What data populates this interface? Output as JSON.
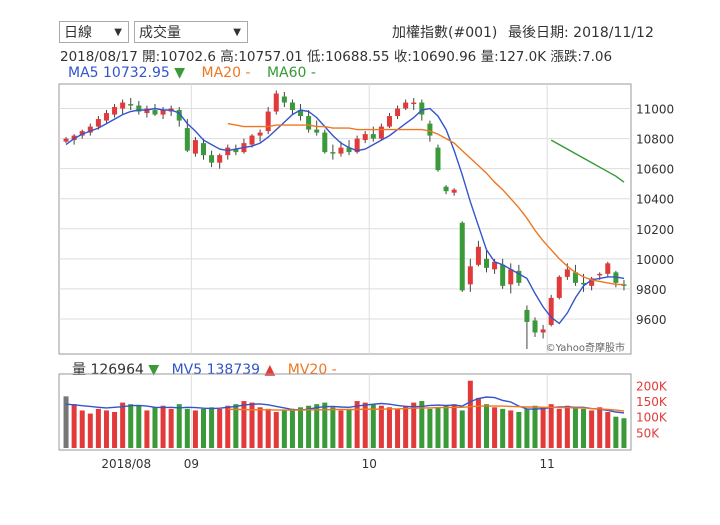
{
  "controls": {
    "period": "日線",
    "indicator": "成交量"
  },
  "header": {
    "title": "加權指數(#001)",
    "last_date": "最後日期: 2018/11/12"
  },
  "quote": {
    "date": "2018/08/17",
    "open": "開:10702.6",
    "high": "高:10757.01",
    "low": "低:10688.55",
    "close": "收:10690.96",
    "volume": "量:127.0K",
    "change": "漲跌:7.06"
  },
  "ma_legend": {
    "ma5": "MA5 10732.95",
    "ma5_arrow": "▼",
    "ma20": "MA20 -",
    "ma60": "MA60 -"
  },
  "vol_legend": {
    "vol": "量 126964",
    "vol_arrow": "▼",
    "mv5": "MV5 138739",
    "mv5_arrow": "▲",
    "mv20": "MV20 -"
  },
  "watermark": "©Yahoo奇摩股市",
  "colors": {
    "up": "#e23a3a",
    "down": "#3a9a3a",
    "ma5": "#3355cc",
    "ma20": "#ee7722",
    "ma60": "#339933",
    "axis_vol": "#e23a3a"
  },
  "chart_data": [
    {
      "type": "candlestick",
      "title": "加權指數(#001)",
      "x_labels": [
        "2018/08",
        "09",
        "10",
        "11"
      ],
      "y_ticks": [
        9600,
        9800,
        10000,
        10200,
        10400,
        10600,
        10800,
        11000
      ],
      "ylim": [
        9380,
        11150
      ],
      "ohlc": [
        [
          10780,
          10810,
          10770,
          10800
        ],
        [
          10790,
          10830,
          10760,
          10820
        ],
        [
          10820,
          10860,
          10800,
          10850
        ],
        [
          10840,
          10900,
          10820,
          10880
        ],
        [
          10880,
          10950,
          10860,
          10930
        ],
        [
          10920,
          10990,
          10900,
          10970
        ],
        [
          10960,
          11030,
          10940,
          11010
        ],
        [
          11000,
          11060,
          10960,
          11040
        ],
        [
          11030,
          11070,
          10990,
          11020
        ],
        [
          11020,
          11050,
          10960,
          10980
        ],
        [
          10970,
          11020,
          10940,
          11000
        ],
        [
          10990,
          11030,
          10950,
          10960
        ],
        [
          10960,
          11010,
          10930,
          10990
        ],
        [
          10980,
          11020,
          10950,
          11000
        ],
        [
          10990,
          11010,
          10880,
          10920
        ],
        [
          10870,
          10930,
          10710,
          10720
        ],
        [
          10700,
          10810,
          10680,
          10790
        ],
        [
          10770,
          10800,
          10660,
          10690
        ],
        [
          10690,
          10720,
          10610,
          10640
        ],
        [
          10640,
          10700,
          10600,
          10690
        ],
        [
          10690,
          10760,
          10660,
          10740
        ],
        [
          10730,
          10760,
          10690,
          10710
        ],
        [
          10710,
          10800,
          10700,
          10770
        ],
        [
          10760,
          10830,
          10740,
          10820
        ],
        [
          10820,
          10860,
          10780,
          10840
        ],
        [
          10850,
          11010,
          10830,
          10980
        ],
        [
          10980,
          11120,
          10960,
          11100
        ],
        [
          11080,
          11110,
          11010,
          11040
        ],
        [
          11040,
          11060,
          10960,
          10990
        ],
        [
          10990,
          11030,
          10920,
          10950
        ],
        [
          10950,
          10990,
          10840,
          10860
        ],
        [
          10860,
          10920,
          10820,
          10840
        ],
        [
          10840,
          10860,
          10700,
          10710
        ],
        [
          10710,
          10760,
          10660,
          10700
        ],
        [
          10700,
          10780,
          10680,
          10740
        ],
        [
          10740,
          10790,
          10690,
          10710
        ],
        [
          10710,
          10820,
          10700,
          10800
        ],
        [
          10790,
          10850,
          10770,
          10830
        ],
        [
          10830,
          10880,
          10780,
          10800
        ],
        [
          10800,
          10900,
          10790,
          10880
        ],
        [
          10880,
          10970,
          10870,
          10950
        ],
        [
          10950,
          11020,
          10930,
          11000
        ],
        [
          11000,
          11060,
          10990,
          11040
        ],
        [
          11030,
          11070,
          10990,
          11040
        ],
        [
          11040,
          11060,
          10920,
          10960
        ],
        [
          10900,
          10920,
          10780,
          10820
        ],
        [
          10740,
          10760,
          10580,
          10590
        ],
        [
          10480,
          10490,
          10430,
          10450
        ],
        [
          10440,
          10470,
          10420,
          10460
        ],
        [
          10240,
          10250,
          9780,
          9790
        ],
        [
          9830,
          10000,
          9780,
          9950
        ],
        [
          9960,
          10120,
          9950,
          10080
        ],
        [
          10000,
          10060,
          9910,
          9940
        ],
        [
          9930,
          10000,
          9900,
          9980
        ],
        [
          9960,
          10000,
          9800,
          9820
        ],
        [
          9830,
          9970,
          9770,
          9930
        ],
        [
          9920,
          9960,
          9820,
          9840
        ],
        [
          9660,
          9690,
          9400,
          9580
        ],
        [
          9590,
          9610,
          9480,
          9510
        ],
        [
          9510,
          9560,
          9470,
          9530
        ],
        [
          9560,
          9760,
          9550,
          9740
        ],
        [
          9740,
          9890,
          9730,
          9880
        ],
        [
          9880,
          9970,
          9860,
          9930
        ],
        [
          9910,
          9960,
          9820,
          9840
        ],
        [
          9840,
          9900,
          9780,
          9830
        ],
        [
          9820,
          9880,
          9790,
          9870
        ],
        [
          9890,
          9910,
          9860,
          9900
        ],
        [
          9900,
          9980,
          9880,
          9970
        ],
        [
          9910,
          9920,
          9810,
          9840
        ],
        [
          9830,
          9860,
          9790,
          9820
        ]
      ],
      "ma5": [
        10760,
        10800,
        10830,
        10850,
        10870,
        10900,
        10930,
        10960,
        10980,
        10990,
        10990,
        11000,
        10990,
        10990,
        10970,
        10900,
        10850,
        10790,
        10760,
        10730,
        10720,
        10730,
        10740,
        10750,
        10770,
        10810,
        10860,
        10910,
        10960,
        10990,
        10980,
        10940,
        10880,
        10820,
        10770,
        10740,
        10720,
        10730,
        10760,
        10790,
        10820,
        10860,
        10900,
        10940,
        10990,
        11000,
        10950,
        10860,
        10720,
        10560,
        10380,
        10220,
        10060,
        9980,
        9960,
        9930,
        9900,
        9870,
        9770,
        9680,
        9610,
        9570,
        9640,
        9740,
        9820,
        9860,
        9870,
        9880,
        9880,
        9870
      ],
      "ma20": [
        null,
        null,
        null,
        null,
        null,
        null,
        null,
        null,
        null,
        null,
        null,
        null,
        null,
        null,
        null,
        null,
        null,
        null,
        null,
        null,
        10900,
        10890,
        10880,
        10880,
        10880,
        10880,
        10890,
        10890,
        10890,
        10890,
        10890,
        10880,
        10880,
        10870,
        10870,
        10870,
        10860,
        10860,
        10860,
        10860,
        10860,
        10860,
        10860,
        10860,
        10860,
        10850,
        10830,
        10800,
        10770,
        10720,
        10670,
        10620,
        10570,
        10510,
        10460,
        10400,
        10340,
        10270,
        10190,
        10120,
        10060,
        10000,
        9950,
        9910,
        9880,
        9860,
        9850,
        9840,
        9830,
        9830
      ],
      "ma60": [
        null,
        null,
        null,
        null,
        null,
        null,
        null,
        null,
        null,
        null,
        null,
        null,
        null,
        null,
        null,
        null,
        null,
        null,
        null,
        null,
        null,
        null,
        null,
        null,
        null,
        null,
        null,
        null,
        null,
        null,
        null,
        null,
        null,
        null,
        null,
        null,
        null,
        null,
        null,
        null,
        null,
        null,
        null,
        null,
        null,
        null,
        null,
        null,
        null,
        null,
        null,
        null,
        null,
        null,
        null,
        null,
        null,
        null,
        null,
        null,
        10790,
        10760,
        10730,
        10700,
        10670,
        10640,
        10610,
        10580,
        10550,
        10510
      ]
    },
    {
      "type": "bar",
      "title": "成交量",
      "y_ticks": [
        "200K",
        "150K",
        "100K",
        "50K"
      ],
      "ylim": [
        0,
        230
      ],
      "volume": [
        165,
        140,
        120,
        110,
        125,
        120,
        115,
        145,
        140,
        135,
        120,
        130,
        135,
        125,
        140,
        125,
        120,
        125,
        130,
        125,
        135,
        140,
        150,
        145,
        130,
        125,
        115,
        120,
        125,
        130,
        135,
        140,
        145,
        130,
        120,
        125,
        150,
        145,
        140,
        135,
        130,
        125,
        135,
        145,
        150,
        125,
        130,
        135,
        140,
        120,
        215,
        160,
        140,
        130,
        125,
        120,
        115,
        125,
        135,
        130,
        140,
        125,
        135,
        130,
        125,
        120,
        130,
        115,
        100,
        95
      ],
      "mv5": [
        140,
        138,
        135,
        133,
        130,
        128,
        130,
        132,
        135,
        136,
        134,
        130,
        129,
        130,
        128,
        130,
        129,
        127,
        126,
        127,
        130,
        133,
        137,
        140,
        141,
        138,
        133,
        128,
        123,
        121,
        124,
        129,
        132,
        133,
        131,
        130,
        134,
        137,
        140,
        142,
        140,
        136,
        133,
        132,
        133,
        136,
        137,
        136,
        137,
        134,
        148,
        158,
        163,
        161,
        152,
        147,
        134,
        125,
        124,
        126,
        129,
        131,
        131,
        130,
        130,
        126,
        124,
        120,
        115,
        112
      ],
      "mv20": [
        null,
        null,
        null,
        null,
        null,
        null,
        null,
        null,
        null,
        null,
        null,
        null,
        null,
        null,
        null,
        null,
        null,
        null,
        null,
        null,
        124,
        123,
        123,
        122,
        122,
        122,
        121,
        121,
        121,
        121,
        122,
        122,
        122,
        123,
        123,
        123,
        123,
        124,
        124,
        124,
        125,
        125,
        126,
        127,
        128,
        128,
        129,
        129,
        130,
        130,
        132,
        134,
        134,
        134,
        134,
        133,
        132,
        131,
        131,
        130,
        130,
        129,
        129,
        128,
        128,
        126,
        125,
        123,
        121,
        118
      ]
    }
  ]
}
